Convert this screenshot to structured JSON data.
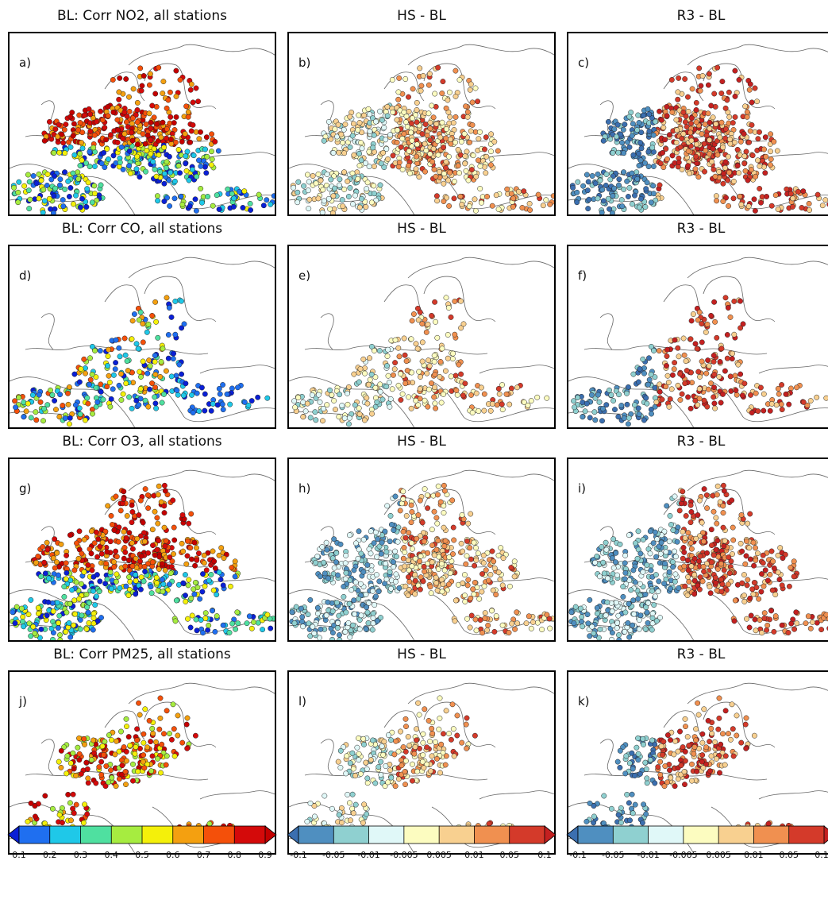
{
  "panels": [
    {
      "label": "a)",
      "title": "BL: Corr NO2, all stations",
      "scale": "abs",
      "pattern": "no2"
    },
    {
      "label": "b)",
      "title": "HS - BL",
      "scale": "diff",
      "pattern": "no2"
    },
    {
      "label": "c)",
      "title": "R3 - BL",
      "scale": "diff",
      "pattern": "no2"
    },
    {
      "label": "d)",
      "title": "BL: Corr CO, all stations",
      "scale": "abs",
      "pattern": "co"
    },
    {
      "label": "e)",
      "title": "HS - BL",
      "scale": "diff",
      "pattern": "co"
    },
    {
      "label": "f)",
      "title": "R3 - BL",
      "scale": "diff",
      "pattern": "co"
    },
    {
      "label": "g)",
      "title": "BL: Corr O3, all stations",
      "scale": "abs",
      "pattern": "o3"
    },
    {
      "label": "h)",
      "title": "HS - BL",
      "scale": "diff",
      "pattern": "o3"
    },
    {
      "label": "i)",
      "title": "R3 - BL",
      "scale": "diff",
      "pattern": "o3"
    },
    {
      "label": "j)",
      "title": "BL: Corr PM25, all stations",
      "scale": "abs",
      "pattern": "pm25"
    },
    {
      "label": "l)",
      "title": "HS - BL",
      "scale": "diff",
      "pattern": "pm25"
    },
    {
      "label": "k)",
      "title": "R3 - BL",
      "scale": "diff",
      "pattern": "pm25"
    }
  ],
  "colorbars": [
    {
      "scale": "abs",
      "ticks": [
        "0.1",
        "0.2",
        "0.3",
        "0.4",
        "0.5",
        "0.6",
        "0.7",
        "0.8",
        "0.9"
      ],
      "colors": [
        "#0a1fd6",
        "#1f6ff0",
        "#1fc8e8",
        "#4fe0a0",
        "#a6ec40",
        "#f4f00a",
        "#f4a010",
        "#f4500a",
        "#d40a0a",
        "#c40000"
      ]
    },
    {
      "scale": "diff",
      "ticks": [
        "-0.1",
        "-0.05",
        "-0.01",
        "-0.005",
        "0.005",
        "0.01",
        "0.05",
        "0.1"
      ],
      "colors": [
        "#3b6fb0",
        "#4f8fc0",
        "#8fd0d0",
        "#e0f8f8",
        "#fcfcc0",
        "#f8d090",
        "#f09050",
        "#d43a2a",
        "#c42020"
      ]
    },
    {
      "scale": "diff",
      "ticks": [
        "-0.1",
        "-0.05",
        "-0.01",
        "-0.005",
        "0.005",
        "0.01",
        "0.05",
        "0.1"
      ],
      "colors": [
        "#3b6fb0",
        "#4f8fc0",
        "#8fd0d0",
        "#e0f8f8",
        "#fcfcc0",
        "#f8d090",
        "#f09050",
        "#d43a2a",
        "#c42020"
      ]
    }
  ]
}
